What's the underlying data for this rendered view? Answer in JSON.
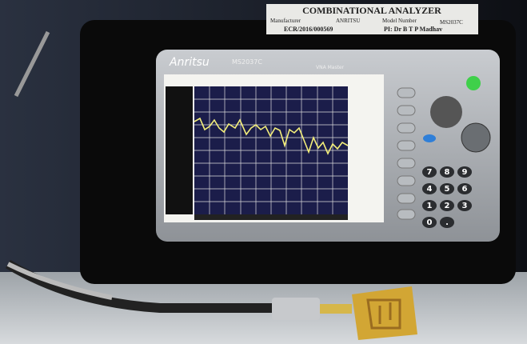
{
  "label": {
    "title": "COMBINATIONAL ANALYZER",
    "rows": [
      [
        "Manufacturer",
        "ANRITSU",
        "Model Number",
        "MS2037C"
      ],
      [
        "ECR/2016/000569",
        "PI: Dr B T P Madhav"
      ]
    ]
  },
  "device": {
    "brand": "Anritsu",
    "model": "MS2037C",
    "product": "VNA Master"
  },
  "keypad": [
    "7",
    "8",
    "9",
    "4",
    "5",
    "6",
    "1",
    "2",
    "3",
    "0",
    "."
  ]
}
